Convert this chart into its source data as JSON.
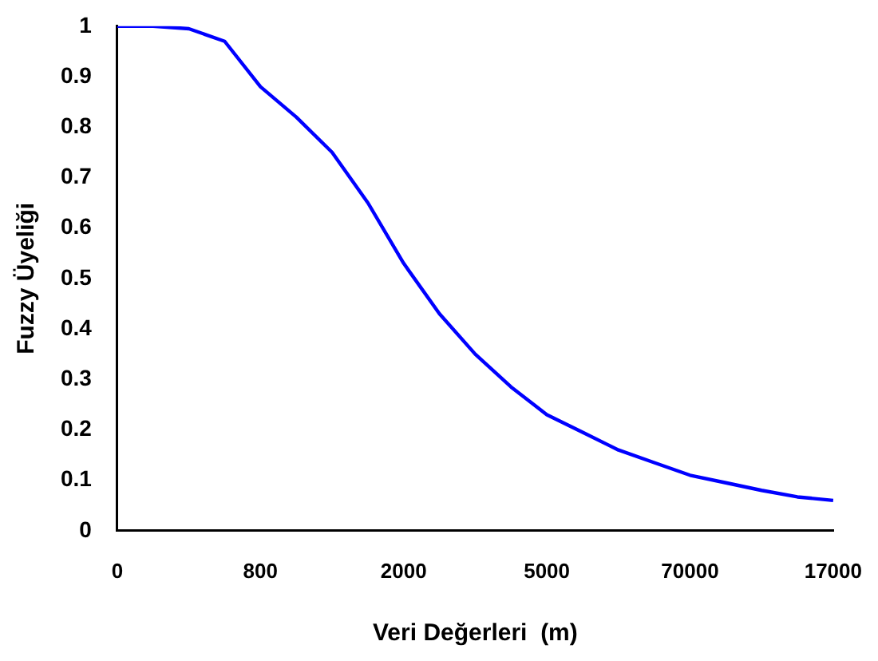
{
  "chart_data": {
    "type": "line",
    "xlabel": "Veri Değerleri  (m)",
    "ylabel": "Fuzzy Üyeliği",
    "categories": [
      "0",
      null,
      null,
      null,
      "800",
      null,
      null,
      null,
      "2000",
      null,
      null,
      null,
      "5000",
      null,
      null,
      null,
      "70000",
      null,
      null,
      null,
      "17000"
    ],
    "series": [
      {
        "color": "#0000ff",
        "values": [
          1.0,
          1.0,
          0.995,
          0.97,
          0.88,
          0.82,
          0.75,
          0.65,
          0.53,
          0.43,
          0.35,
          0.285,
          0.23,
          0.195,
          0.16,
          0.135,
          0.11,
          0.095,
          0.08,
          0.067,
          0.06
        ]
      }
    ],
    "ylim": [
      0,
      1
    ],
    "yticks": [
      0,
      0.1,
      0.2,
      0.3,
      0.4,
      0.5,
      0.6,
      0.7,
      0.8,
      0.9,
      1
    ],
    "grid": false,
    "legend": false,
    "marker": "none",
    "line_style": "solid"
  }
}
